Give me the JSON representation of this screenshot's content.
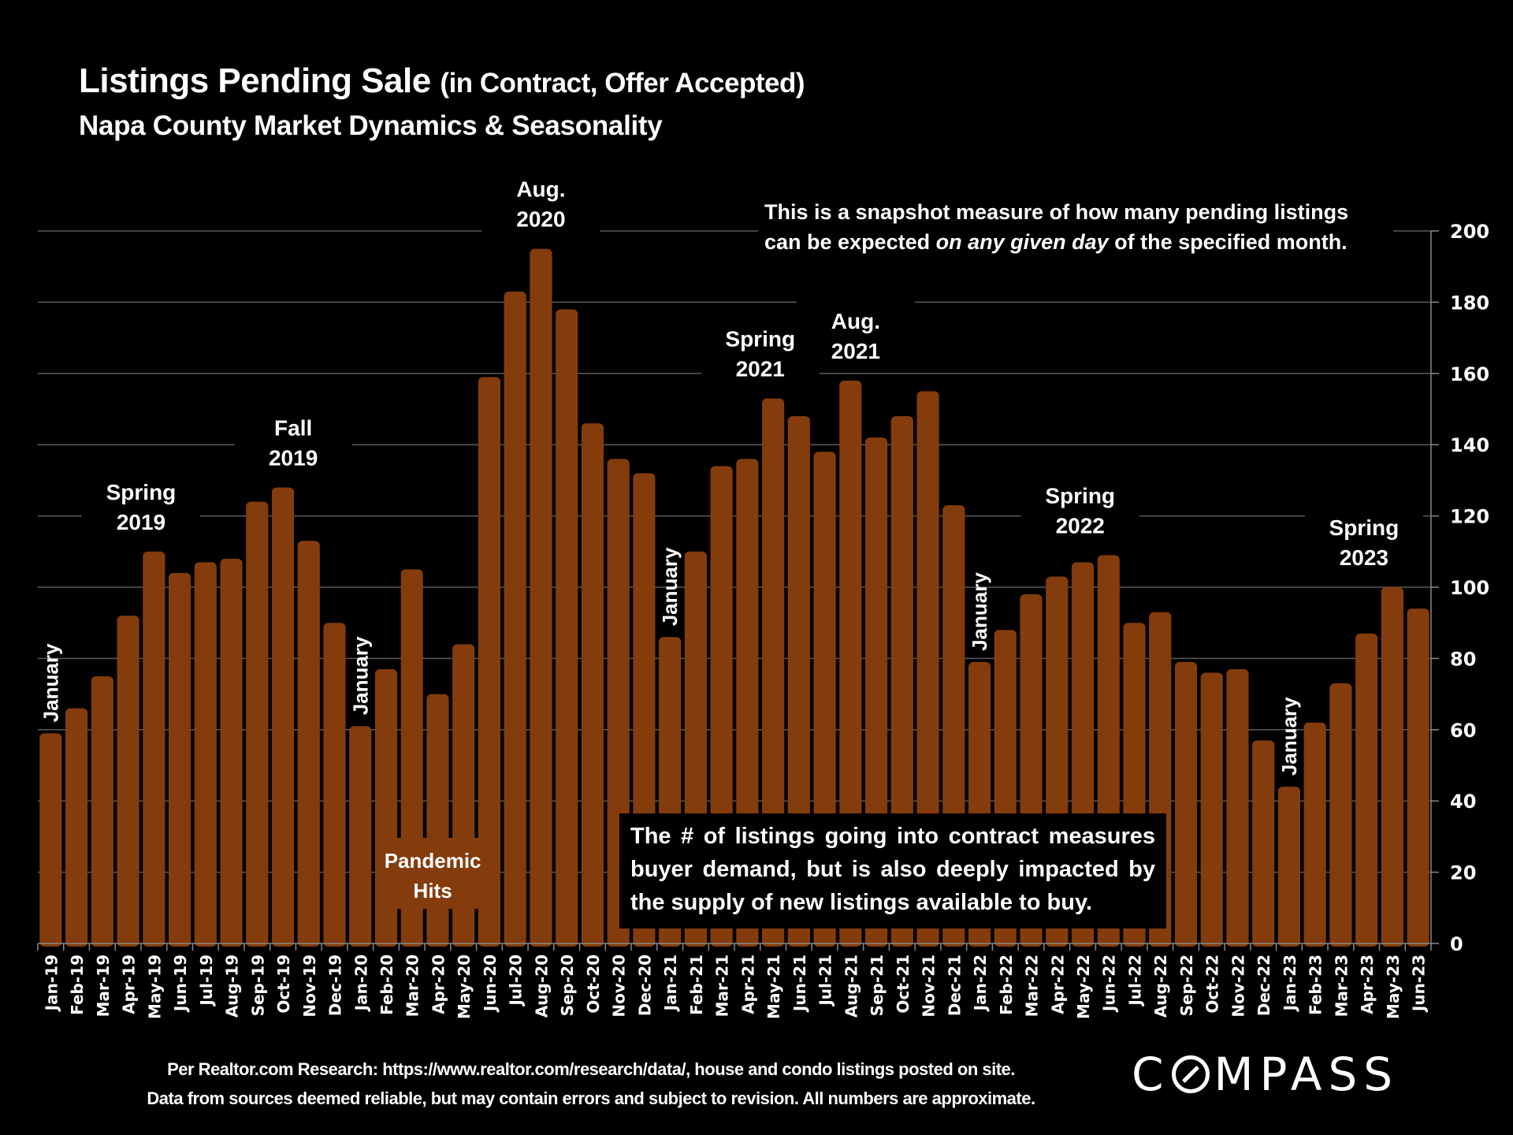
{
  "header": {
    "title": "Listings Pending Sale",
    "title_paren": "(in Contract, Offer Accepted)",
    "subtitle": "Napa County Market Dynamics & Seasonality"
  },
  "notes": {
    "top_before": "This is a snapshot measure of how many pending listings can be expected ",
    "top_italic": "on any given day",
    "top_after": " of the specified month.",
    "box": "The # of listings going into contract measures buyer demand, but is also deeply impacted by the supply of new listings available to buy."
  },
  "footer": {
    "line1": "Per Realtor.com Research:  https://www.realtor.com/research/data/, house and condo listings posted on site.",
    "line2": "Data from sources deemed reliable, but may contain errors and subject to revision. All numbers are approximate."
  },
  "logo": {
    "before": "C",
    "icon": "compass-o-icon",
    "after": "MPASS"
  },
  "colors": {
    "bar": "#843C0C",
    "background": "#000000",
    "grid": "#595959",
    "text": "#FFFFFF"
  },
  "chart_data": {
    "type": "bar",
    "title": "Listings Pending Sale (in Contract, Offer Accepted)",
    "subtitle": "Napa County Market Dynamics & Seasonality",
    "xlabel": "",
    "ylabel": "",
    "ylim": [
      0,
      200
    ],
    "yticks": [
      0,
      20,
      40,
      60,
      80,
      100,
      120,
      140,
      160,
      180,
      200
    ],
    "y_axis_side": "right",
    "grid": true,
    "categories": [
      "Jan-19",
      "Feb-19",
      "Mar-19",
      "Apr-19",
      "May-19",
      "Jun-19",
      "Jul-19",
      "Aug-19",
      "Sep-19",
      "Oct-19",
      "Nov-19",
      "Dec-19",
      "Jan-20",
      "Feb-20",
      "Mar-20",
      "Apr-20",
      "May-20",
      "Jun-20",
      "Jul-20",
      "Aug-20",
      "Sep-20",
      "Oct-20",
      "Nov-20",
      "Dec-20",
      "Jan-21",
      "Feb-21",
      "Mar-21",
      "Apr-21",
      "May-21",
      "Jun-21",
      "Jul-21",
      "Aug-21",
      "Sep-21",
      "Oct-21",
      "Nov-21",
      "Dec-21",
      "Jan-22",
      "Feb-22",
      "Mar-22",
      "Apr-22",
      "May-22",
      "Jun-22",
      "Jul-22",
      "Aug-22",
      "Sep-22",
      "Oct-22",
      "Nov-22",
      "Dec-22",
      "Jan-23",
      "Feb-23",
      "Mar-23",
      "Apr-23",
      "May-23",
      "Jun-23"
    ],
    "values": [
      59,
      66,
      75,
      92,
      110,
      104,
      107,
      108,
      124,
      128,
      113,
      90,
      61,
      77,
      105,
      70,
      84,
      159,
      183,
      195,
      178,
      146,
      136,
      132,
      86,
      110,
      134,
      136,
      153,
      148,
      138,
      158,
      142,
      148,
      155,
      123,
      79,
      88,
      98,
      103,
      107,
      109,
      90,
      93,
      79,
      76,
      77,
      57,
      44,
      62,
      73,
      87,
      100,
      94
    ],
    "annotations": [
      {
        "text": "January",
        "index": 0,
        "rotated": true
      },
      {
        "text": "Spring 2019",
        "index": 3.5,
        "rotated": false
      },
      {
        "text": "Fall 2019",
        "index": 9.4,
        "rotated": false
      },
      {
        "text": "January",
        "index": 12,
        "rotated": true
      },
      {
        "text": "Pandemic Hits",
        "index": 15,
        "rotated": false
      },
      {
        "text": "Aug. 2020",
        "index": 19,
        "rotated": false
      },
      {
        "text": "January",
        "index": 24,
        "rotated": true
      },
      {
        "text": "Spring 2021",
        "index": 27.5,
        "rotated": false
      },
      {
        "text": "Aug. 2021",
        "index": 31.2,
        "rotated": false
      },
      {
        "text": "January",
        "index": 36,
        "rotated": true
      },
      {
        "text": "Spring 2022",
        "index": 39.9,
        "rotated": false
      },
      {
        "text": "January",
        "index": 48,
        "rotated": true
      },
      {
        "text": "Spring 2023",
        "index": 50.9,
        "rotated": false
      }
    ]
  }
}
